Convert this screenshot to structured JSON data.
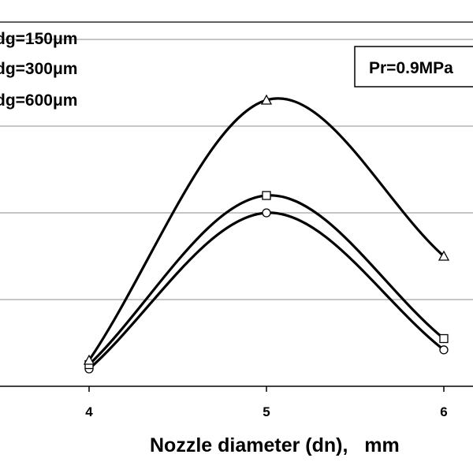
{
  "chart_data": {
    "type": "line",
    "xlabel": "Nozzle diameter (dn),   mm",
    "x": [
      4,
      5,
      6
    ],
    "xticks": [
      "4",
      "5",
      "6"
    ],
    "ylim": [
      0,
      4.2
    ],
    "grid": "horizontal",
    "legend_position": "top-left",
    "series": [
      {
        "name": "dg=150μm",
        "marker": "circle",
        "values": [
          0.2,
          2.0,
          0.42
        ]
      },
      {
        "name": "dg=300μm",
        "marker": "square",
        "values": [
          0.25,
          2.2,
          0.55
        ]
      },
      {
        "name": "dg=600μm",
        "marker": "triangle",
        "values": [
          0.3,
          3.3,
          1.5
        ]
      }
    ],
    "annotations": [
      "Pr=0.9MPa"
    ]
  }
}
